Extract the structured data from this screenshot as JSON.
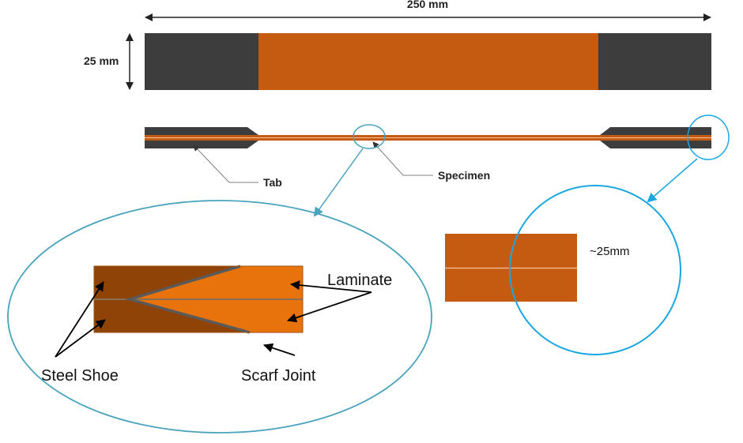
{
  "labels": {
    "length_dim": "250 mm",
    "width_dim": "25 mm",
    "tab": "Tab",
    "specimen": "Specimen",
    "approx_size": "~25mm",
    "laminate": "Laminate",
    "steel_shoe": "Steel Shoe",
    "scarf_joint": "Scarf Joint"
  },
  "colors": {
    "tab_dark": "#3d3d3d",
    "specimen_orange": "#c55a11",
    "steel_shoe_brown": "#8f4306",
    "laminate_orange": "#e8720c",
    "joint_line": "#5a5a5a",
    "callout_teal": "#4aa3bd",
    "callout_cyan": "#1aa7e0",
    "leader_gray": "#7f7f7f"
  }
}
